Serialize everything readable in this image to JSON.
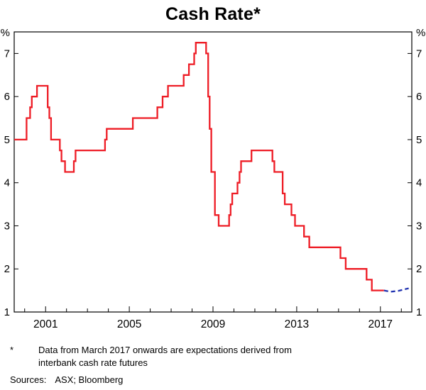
{
  "chart_data": {
    "type": "line",
    "title": "Cash Rate*",
    "unit_label": "%",
    "x_range": [
      1999.5,
      2018.5
    ],
    "y_range": [
      1,
      7.5
    ],
    "y_ticks": [
      1,
      2,
      3,
      4,
      5,
      6,
      7
    ],
    "x_tick_labels": [
      "2001",
      "2005",
      "2009",
      "2013",
      "2017"
    ],
    "x_label_years": [
      2001,
      2005,
      2009,
      2013,
      2017
    ],
    "x_minor_tick_start": 2000,
    "x_minor_tick_end": 2018,
    "grid": "off",
    "legend": "none",
    "series": [
      {
        "name": "cash-rate-actual",
        "color": "#ee1c25",
        "style": "solid",
        "step": true,
        "points": [
          [
            1999.5,
            5.0
          ],
          [
            2000.09,
            5.5
          ],
          [
            2000.26,
            5.75
          ],
          [
            2000.34,
            6.0
          ],
          [
            2000.59,
            6.25
          ],
          [
            2001.1,
            5.75
          ],
          [
            2001.18,
            5.5
          ],
          [
            2001.26,
            5.0
          ],
          [
            2001.68,
            4.75
          ],
          [
            2001.76,
            4.5
          ],
          [
            2001.93,
            4.25
          ],
          [
            2002.35,
            4.5
          ],
          [
            2002.43,
            4.75
          ],
          [
            2003.84,
            5.0
          ],
          [
            2003.92,
            5.25
          ],
          [
            2005.17,
            5.5
          ],
          [
            2006.34,
            5.75
          ],
          [
            2006.59,
            6.0
          ],
          [
            2006.85,
            6.25
          ],
          [
            2007.6,
            6.5
          ],
          [
            2007.85,
            6.75
          ],
          [
            2008.1,
            7.0
          ],
          [
            2008.18,
            7.25
          ],
          [
            2008.67,
            7.0
          ],
          [
            2008.77,
            6.0
          ],
          [
            2008.84,
            5.25
          ],
          [
            2008.92,
            4.25
          ],
          [
            2009.09,
            3.25
          ],
          [
            2009.27,
            3.0
          ],
          [
            2009.77,
            3.25
          ],
          [
            2009.84,
            3.5
          ],
          [
            2009.92,
            3.75
          ],
          [
            2010.17,
            4.0
          ],
          [
            2010.27,
            4.25
          ],
          [
            2010.34,
            4.5
          ],
          [
            2010.84,
            4.75
          ],
          [
            2011.84,
            4.5
          ],
          [
            2011.93,
            4.25
          ],
          [
            2012.33,
            3.75
          ],
          [
            2012.43,
            3.5
          ],
          [
            2012.75,
            3.25
          ],
          [
            2012.92,
            3.0
          ],
          [
            2013.35,
            2.75
          ],
          [
            2013.6,
            2.5
          ],
          [
            2015.09,
            2.25
          ],
          [
            2015.34,
            2.0
          ],
          [
            2016.34,
            1.75
          ],
          [
            2016.59,
            1.5
          ],
          [
            2017.17,
            1.5
          ]
        ]
      },
      {
        "name": "cash-rate-futures-expectations",
        "color": "#2133b0",
        "style": "dashed",
        "step": false,
        "points": [
          [
            2017.17,
            1.5
          ],
          [
            2017.5,
            1.47
          ],
          [
            2017.85,
            1.49
          ],
          [
            2018.1,
            1.52
          ],
          [
            2018.35,
            1.55
          ]
        ]
      }
    ]
  },
  "footnote": {
    "marker": "*",
    "text": "Data from March 2017 onwards are expectations derived from interbank cash rate futures"
  },
  "footer": {
    "sources_label": "Sources:",
    "sources_text": "ASX; Bloomberg"
  }
}
